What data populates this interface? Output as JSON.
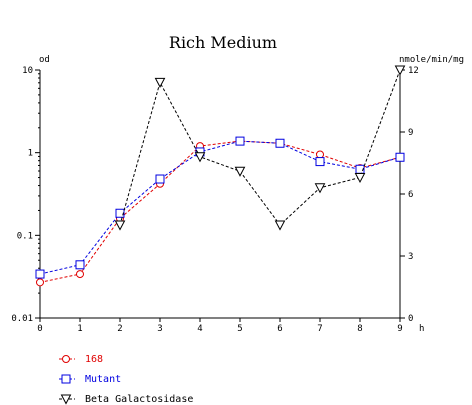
{
  "chart_data": {
    "type": "line",
    "title": "Rich Medium",
    "xlabel": "h",
    "ylabel_left": "od",
    "ylabel_right": "nmole/min/mg",
    "x": [
      0,
      1,
      2,
      3,
      4,
      5,
      6,
      7,
      8,
      9
    ],
    "x_ticks": [
      "0",
      "1",
      "2",
      "3",
      "4",
      "5",
      "6",
      "7",
      "8",
      "9"
    ],
    "xlim": [
      0,
      9
    ],
    "left_axis": {
      "scale": "log",
      "ylim": [
        0.01,
        10
      ],
      "ticks": [
        0.01,
        0.1,
        1,
        10
      ],
      "tick_labels": [
        "0.01",
        "0.1",
        "1",
        "10"
      ]
    },
    "right_axis": {
      "scale": "linear",
      "ylim": [
        0,
        12
      ],
      "ticks": [
        0,
        3,
        6,
        9,
        12
      ],
      "tick_labels": [
        "0",
        "3",
        "6",
        "9",
        "12"
      ]
    },
    "series": [
      {
        "name": "168",
        "axis": "left",
        "marker": "circle",
        "color": "#e00000",
        "values": [
          0.027,
          0.034,
          0.16,
          0.42,
          1.2,
          1.38,
          1.3,
          0.95,
          0.65,
          0.88
        ]
      },
      {
        "name": "Mutant",
        "axis": "left",
        "marker": "square",
        "color": "#0000e0",
        "values": [
          0.034,
          0.044,
          0.185,
          0.48,
          1.02,
          1.38,
          1.3,
          0.78,
          0.63,
          0.88
        ]
      },
      {
        "name": "Beta Galactosidase",
        "axis": "right",
        "marker": "triangle-down",
        "color": "#000000",
        "values": [
          null,
          null,
          4.5,
          11.4,
          7.8,
          7.1,
          4.5,
          6.3,
          6.8,
          12
        ]
      }
    ],
    "grid": false,
    "legend_position": "bottom-left"
  }
}
